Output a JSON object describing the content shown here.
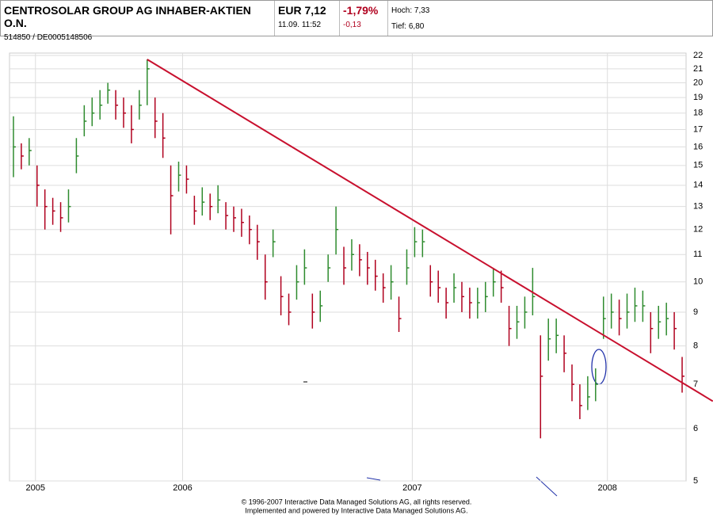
{
  "header": {
    "name": "CENTROSOLAR GROUP AG INHABER-AKTIEN O.N.",
    "id": "514850  /  DE0005148506",
    "price": "EUR 7,12",
    "time": "11.09. 11:52",
    "change_pct": "-1,79%",
    "change": "-0,13",
    "high": "Hoch: 7,33",
    "low": "Tief: 6,80"
  },
  "chart_data": {
    "type": "ohlc",
    "log_scale": true,
    "grid": true,
    "up_color": "#2e8b2e",
    "down_color": "#b0001e",
    "x": [
      0,
      1,
      2,
      3,
      4,
      5,
      6,
      7,
      8,
      9,
      10,
      11,
      12,
      13,
      14,
      15,
      16,
      17,
      18,
      19,
      20,
      21,
      22,
      23,
      24,
      25,
      26,
      27,
      28,
      29,
      30,
      31,
      32,
      33,
      34,
      35,
      36,
      37,
      38,
      39,
      40,
      41,
      42,
      43,
      44,
      45,
      46,
      47,
      48,
      49,
      50,
      51,
      52,
      53,
      54,
      55,
      56,
      57,
      58,
      59,
      60,
      61,
      62,
      63,
      64,
      65,
      66,
      67,
      68,
      69,
      70,
      71,
      72,
      73,
      74,
      75,
      76,
      77,
      78,
      79,
      80,
      81,
      82,
      83,
      84,
      85
    ],
    "high": [
      17.8,
      16.2,
      16.5,
      15,
      13.8,
      13.4,
      13.2,
      13.8,
      16.5,
      18.5,
      19,
      19.5,
      20,
      19.5,
      19,
      18.5,
      19.5,
      21.7,
      19,
      18,
      15,
      15.2,
      15,
      13.5,
      13.9,
      13.6,
      14,
      13.2,
      13,
      12.9,
      12.6,
      12.2,
      11,
      12,
      10.2,
      9.6,
      10.6,
      11.2,
      9.6,
      9.7,
      11,
      13,
      11.3,
      11.6,
      11.4,
      11.1,
      10.8,
      10.3,
      10.6,
      9.5,
      11.2,
      12.1,
      12,
      10.6,
      10.4,
      9.8,
      10.3,
      10,
      9.8,
      9.8,
      10,
      10.5,
      10.4,
      9.2,
      9.2,
      9.5,
      10.5,
      8.3,
      8.8,
      8.8,
      8.3,
      7.5,
      7,
      7.2,
      7.4,
      9.5,
      9.6,
      9.4,
      9.6,
      9.8,
      9.7,
      9,
      9.2,
      9.3,
      9,
      7.7
    ],
    "low": [
      14.4,
      14.8,
      15,
      13,
      12,
      12.2,
      11.9,
      12.3,
      14.6,
      16.6,
      17.2,
      17.6,
      18.6,
      17.6,
      17.1,
      16.2,
      17.6,
      18.5,
      16.5,
      15.4,
      11.8,
      13.7,
      13.6,
      12.2,
      12.6,
      12.4,
      12.7,
      12,
      11.9,
      11.7,
      11.4,
      10.8,
      9.4,
      10.9,
      8.9,
      8.6,
      9.4,
      9.9,
      8.5,
      8.7,
      10,
      11,
      9.9,
      10.4,
      10.2,
      9.9,
      9.7,
      9.3,
      9.4,
      8.4,
      9.9,
      10.9,
      10.9,
      9.5,
      9.3,
      8.8,
      9.3,
      9,
      8.8,
      8.8,
      9,
      9.5,
      9.3,
      8,
      8.2,
      8.5,
      8.9,
      5.8,
      7.6,
      7.8,
      7.3,
      6.6,
      6.2,
      6.4,
      6.6,
      8.2,
      8.5,
      8.3,
      8.5,
      8.7,
      8.7,
      7.8,
      8.2,
      8.3,
      7.9,
      6.8
    ],
    "close": [
      16,
      15.5,
      15.8,
      14,
      13,
      12.8,
      12.5,
      13,
      15.5,
      17.5,
      18,
      18.5,
      19.5,
      18.5,
      18,
      17,
      18.5,
      21,
      17.5,
      16.5,
      13.5,
      14.5,
      14.3,
      12.8,
      13.2,
      13,
      13.3,
      12.6,
      12.5,
      12.3,
      12,
      11.5,
      10,
      11.5,
      9.5,
      9,
      10,
      10.5,
      9,
      9.2,
      10.5,
      12,
      10.5,
      11,
      10.8,
      10.5,
      10.2,
      9.8,
      10,
      8.8,
      10.5,
      11.5,
      11.5,
      10,
      9.8,
      9.3,
      9.8,
      9.5,
      9.3,
      9.3,
      9.5,
      10,
      9.8,
      8.5,
      8.7,
      9,
      9.5,
      7.2,
      8.2,
      8.3,
      7.8,
      7,
      6.5,
      6.7,
      7,
      8.8,
      9,
      8.8,
      9,
      9.2,
      9.2,
      8.5,
      8.7,
      8.8,
      8.5,
      7.2
    ],
    "xlim": [
      -0.5,
      85.5
    ],
    "ylim": [
      5,
      22
    ],
    "xticks": [
      {
        "value": 2.8,
        "label": "2005"
      },
      {
        "value": 21.5,
        "label": "2006"
      },
      {
        "value": 50.7,
        "label": "2007"
      },
      {
        "value": 75.5,
        "label": "2008"
      }
    ],
    "yticks": [
      5,
      6,
      7,
      8,
      9,
      10,
      11,
      12,
      13,
      14,
      15,
      16,
      17,
      18,
      19,
      20,
      21,
      22
    ],
    "trendline": {
      "x": [
        17,
        88.9
      ],
      "y": [
        21.7,
        6.6
      ],
      "color": "#c8102e"
    }
  },
  "footer": [
    "© 1996-2007 Interactive Data Managed Solutions AG, all rights reserved.",
    "Implemented and powered by Interactive Data Managed Solutions AG."
  ]
}
